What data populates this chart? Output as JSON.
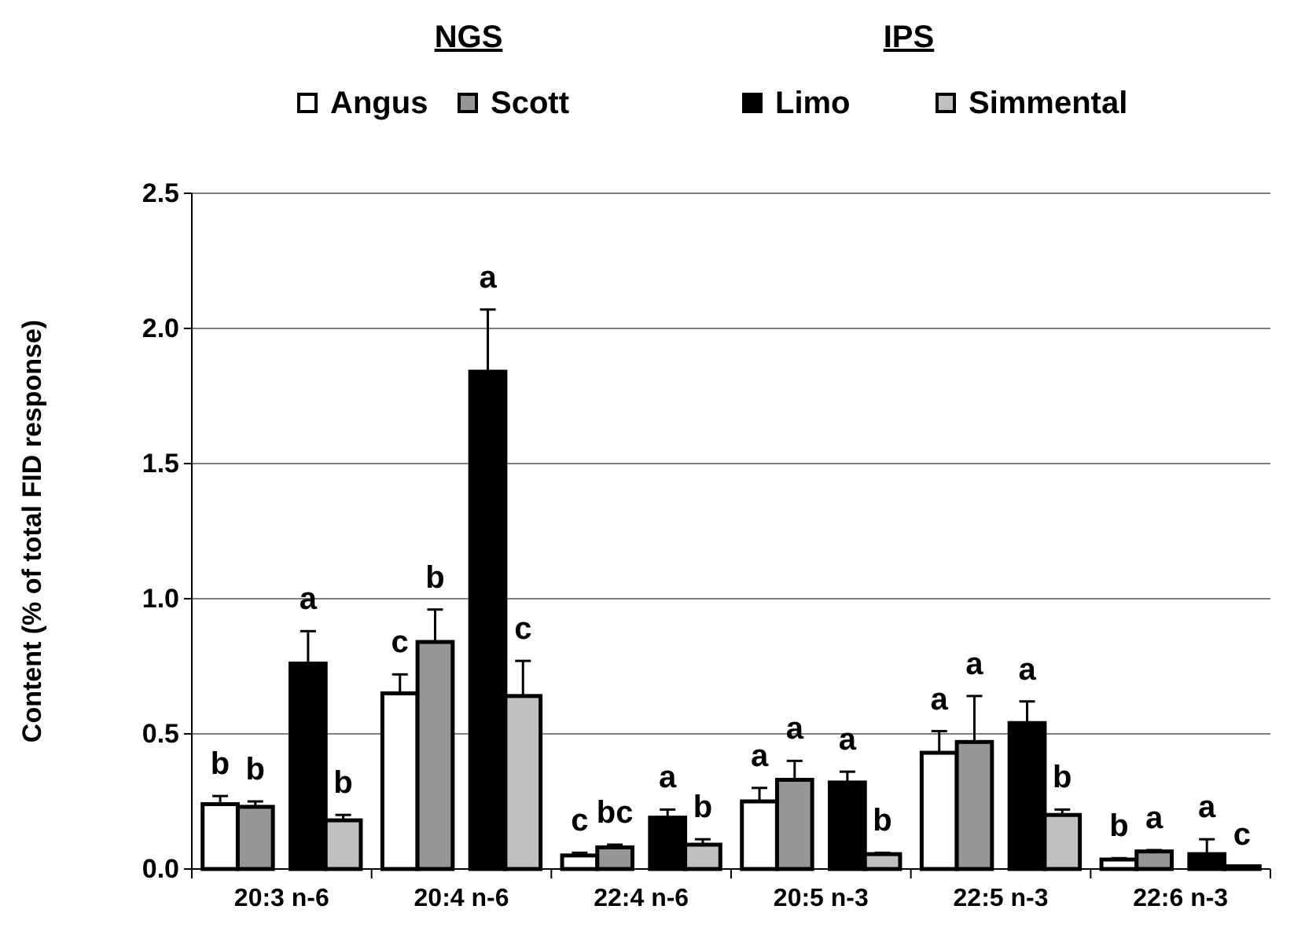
{
  "chart_data": {
    "type": "bar",
    "ylabel": "Content (% of total FID response)",
    "categories": [
      "20:3 n-6",
      "20:4 n-6",
      "22:4 n-6",
      "20:5 n-3",
      "22:5 n-3",
      "22:6 n-3"
    ],
    "series": [
      {
        "name": "Angus",
        "color": "#ffffff",
        "values": [
          0.24,
          0.65,
          0.05,
          0.25,
          0.43,
          0.035
        ],
        "errors": [
          [
            0.24,
            0.27
          ],
          [
            0.65,
            0.72
          ],
          [
            0.05,
            0.06
          ],
          [
            0.25,
            0.3
          ],
          [
            0.43,
            0.51
          ],
          [
            0.035,
            0.04
          ]
        ],
        "value_labels": [
          "b",
          "c",
          "c",
          "a",
          "a",
          "b"
        ]
      },
      {
        "name": "Scott",
        "color": "#969696",
        "values": [
          0.23,
          0.84,
          0.08,
          0.33,
          0.47,
          0.065
        ],
        "errors": [
          [
            0.23,
            0.25
          ],
          [
            0.84,
            0.96
          ],
          [
            0.08,
            0.09
          ],
          [
            0.33,
            0.4
          ],
          [
            0.47,
            0.64
          ],
          [
            0.065,
            0.07
          ]
        ],
        "value_labels": [
          "b",
          "b",
          "bc",
          "a",
          "a",
          "a"
        ]
      },
      {
        "name": "Limo",
        "color": "#000000",
        "values": [
          0.76,
          1.84,
          0.19,
          0.32,
          0.54,
          0.055
        ],
        "errors": [
          [
            0.76,
            0.88
          ],
          [
            1.84,
            2.07
          ],
          [
            0.19,
            0.22
          ],
          [
            0.32,
            0.36
          ],
          [
            0.54,
            0.62
          ],
          [
            0.055,
            0.11
          ]
        ],
        "value_labels": [
          "a",
          "a",
          "a",
          "a",
          "a",
          "a"
        ]
      },
      {
        "name": "Simmental",
        "color": "#c0c0c0",
        "values": [
          0.18,
          0.64,
          0.09,
          0.055,
          0.2,
          0.01
        ],
        "errors": [
          [
            0.18,
            0.2
          ],
          [
            0.64,
            0.77
          ],
          [
            0.09,
            0.11
          ],
          [
            0.055,
            0.06
          ],
          [
            0.2,
            0.22
          ],
          null
        ],
        "value_labels": [
          "b",
          "c",
          "b",
          "b",
          "b",
          "c"
        ]
      }
    ],
    "annotations": [
      "NGS",
      "IPS"
    ],
    "ylim": [
      0,
      2.5
    ],
    "yticks": [
      {
        "value": 0,
        "label": "0.0"
      },
      {
        "value": 0.5,
        "label": "0.5"
      },
      {
        "value": 1,
        "label": "1.0"
      },
      {
        "value": 1.5,
        "label": "1.5"
      },
      {
        "value": 2,
        "label": "2.0"
      },
      {
        "value": 2.5,
        "label": "2.5"
      }
    ],
    "grid": "y",
    "legend": "top"
  }
}
